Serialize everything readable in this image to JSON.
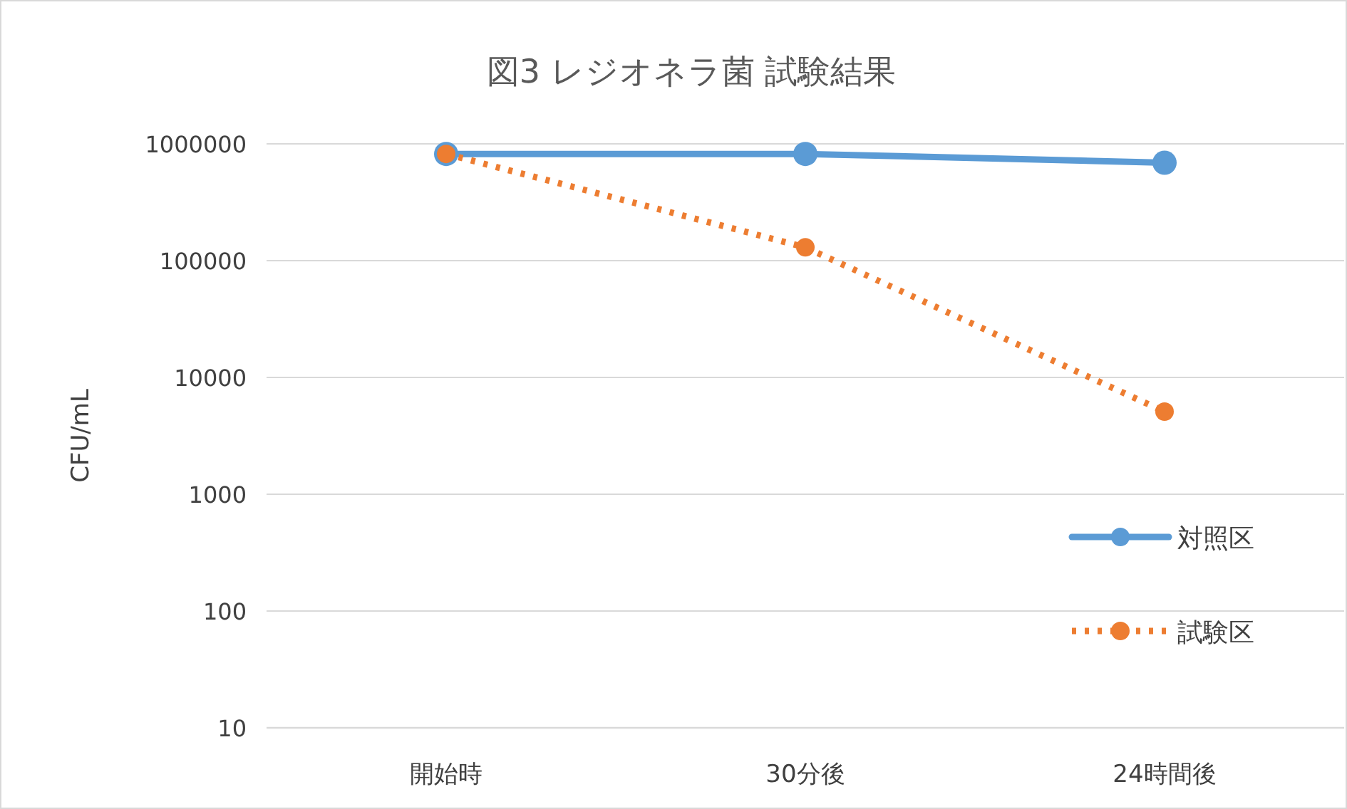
{
  "chart_data": {
    "type": "line",
    "title": "図3 レジオネラ菌 試験結果",
    "ylabel": "CFU/mL",
    "categories": [
      "開始時",
      "30分後",
      "24時間後"
    ],
    "series": [
      {
        "name": "対照区",
        "color": "#5b9bd5",
        "values": [
          820000,
          820000,
          690000
        ],
        "line_style": "solid"
      },
      {
        "name": "試験区",
        "color": "#ed7d31",
        "values": [
          820000,
          130000,
          5100
        ],
        "line_style": "dotted"
      }
    ],
    "ylim": [
      10,
      1000000
    ],
    "yticks": [
      10,
      100,
      1000,
      10000,
      100000,
      1000000
    ],
    "log": "y",
    "grid": "y",
    "legend": "right",
    "marker": "circle"
  }
}
